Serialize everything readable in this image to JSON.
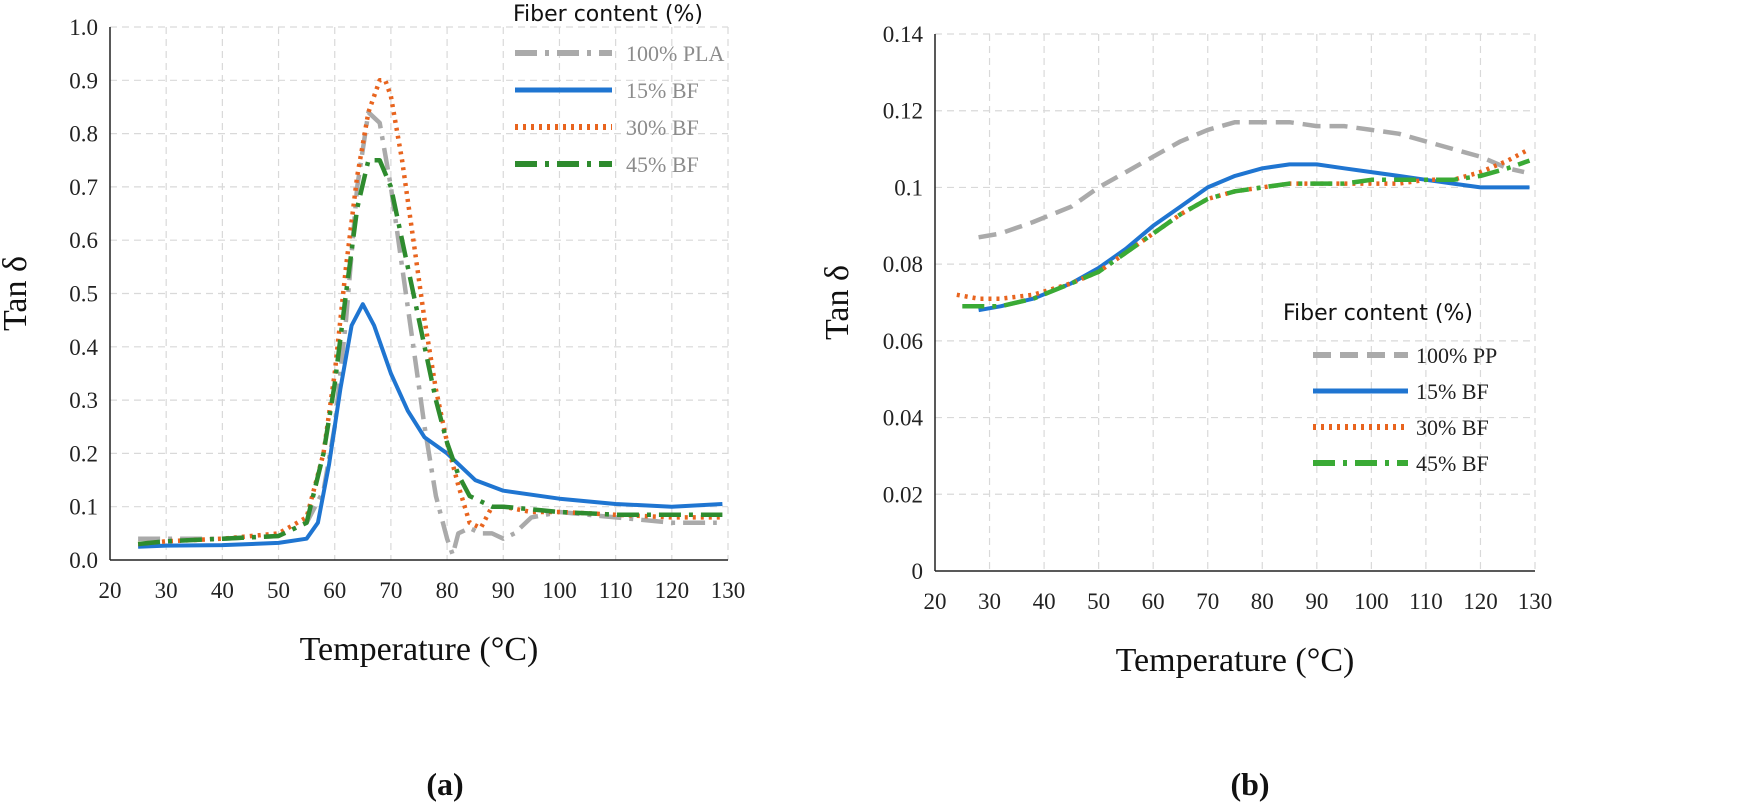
{
  "chart_data": [
    {
      "type": "line",
      "panel_label": "(a)",
      "xlabel": "Temperature (°C)",
      "ylabel": "Tan δ",
      "xlim": [
        20,
        130
      ],
      "ylim": [
        0,
        1.0
      ],
      "xticks": [
        20,
        30,
        40,
        50,
        60,
        70,
        80,
        90,
        100,
        110,
        120,
        130
      ],
      "yticks": [
        "0.0",
        "0.1",
        "0.2",
        "0.3",
        "0.4",
        "0.5",
        "0.6",
        "0.7",
        "0.8",
        "0.9",
        "1.0"
      ],
      "grid": true,
      "legend_title": "Fiber content (%)",
      "legend_position": "top-right",
      "series": [
        {
          "name": "100% PLA",
          "color": "#aaaaaa",
          "style": "dash-dot",
          "label_color": "#8c8c8c",
          "x": [
            25,
            30,
            40,
            50,
            55,
            58,
            60,
            62,
            64,
            66,
            68,
            70,
            72,
            74,
            76,
            78,
            80,
            81,
            82,
            84,
            86,
            88,
            90,
            92,
            95,
            100,
            110,
            120,
            128
          ],
          "y": [
            0.04,
            0.04,
            0.04,
            0.045,
            0.07,
            0.13,
            0.25,
            0.45,
            0.7,
            0.84,
            0.82,
            0.7,
            0.55,
            0.4,
            0.25,
            0.12,
            0.04,
            0.01,
            0.05,
            0.06,
            0.05,
            0.05,
            0.04,
            0.05,
            0.08,
            0.09,
            0.08,
            0.07,
            0.07
          ]
        },
        {
          "name": "15% BF",
          "color": "#1f75d1",
          "style": "solid",
          "label_color": "#8c8c8c",
          "x": [
            25,
            30,
            40,
            50,
            55,
            57,
            59,
            61,
            63,
            65,
            67,
            70,
            73,
            76,
            80,
            85,
            90,
            100,
            110,
            120,
            129
          ],
          "y": [
            0.025,
            0.027,
            0.028,
            0.032,
            0.04,
            0.07,
            0.18,
            0.32,
            0.44,
            0.48,
            0.44,
            0.35,
            0.28,
            0.23,
            0.2,
            0.15,
            0.13,
            0.115,
            0.105,
            0.1,
            0.105
          ]
        },
        {
          "name": "30% BF",
          "color": "#e8641e",
          "style": "dotted",
          "label_color": "#8c8c8c",
          "x": [
            25,
            30,
            40,
            50,
            55,
            58,
            60,
            62,
            64,
            66,
            68,
            69,
            70,
            72,
            74,
            76,
            78,
            80,
            82,
            84,
            86,
            88,
            90,
            95,
            100,
            110,
            120,
            129
          ],
          "y": [
            0.03,
            0.035,
            0.04,
            0.05,
            0.08,
            0.2,
            0.35,
            0.55,
            0.72,
            0.84,
            0.9,
            0.9,
            0.87,
            0.75,
            0.6,
            0.45,
            0.32,
            0.22,
            0.14,
            0.07,
            0.06,
            0.1,
            0.1,
            0.09,
            0.09,
            0.085,
            0.08,
            0.08
          ]
        },
        {
          "name": "45% BF",
          "color": "#2e8b2e",
          "style": "dash-dot",
          "label_color": "#8c8c8c",
          "x": [
            25,
            30,
            40,
            50,
            55,
            58,
            60,
            62,
            64,
            66,
            68,
            70,
            72,
            74,
            76,
            78,
            80,
            82,
            84,
            86,
            88,
            90,
            100,
            110,
            120,
            129
          ],
          "y": [
            0.03,
            0.035,
            0.04,
            0.045,
            0.07,
            0.2,
            0.33,
            0.5,
            0.66,
            0.75,
            0.75,
            0.7,
            0.6,
            0.5,
            0.4,
            0.3,
            0.22,
            0.16,
            0.12,
            0.11,
            0.1,
            0.1,
            0.09,
            0.085,
            0.085,
            0.085
          ]
        }
      ]
    },
    {
      "type": "line",
      "panel_label": "(b)",
      "xlabel": "Temperature (°C)",
      "ylabel": "Tan δ",
      "xlim": [
        20,
        130
      ],
      "ylim": [
        0,
        0.14
      ],
      "xticks": [
        20,
        30,
        40,
        50,
        60,
        70,
        80,
        90,
        100,
        110,
        120,
        130
      ],
      "yticks": [
        "0",
        "0.02",
        "0.04",
        "0.06",
        "0.08",
        "0.1",
        "0.12",
        "0.14"
      ],
      "grid": true,
      "legend_title": "Fiber content (%)",
      "legend_position": "bottom-right",
      "series": [
        {
          "name": "100% PP",
          "color": "#aaaaaa",
          "style": "dashed",
          "label_color": "#222222",
          "x": [
            28,
            32,
            38,
            45,
            50,
            55,
            60,
            65,
            70,
            75,
            80,
            85,
            90,
            95,
            100,
            105,
            110,
            115,
            120,
            125,
            128
          ],
          "y": [
            0.087,
            0.088,
            0.091,
            0.095,
            0.1,
            0.104,
            0.108,
            0.112,
            0.115,
            0.117,
            0.117,
            0.117,
            0.116,
            0.116,
            0.115,
            0.114,
            0.112,
            0.11,
            0.108,
            0.105,
            0.104
          ]
        },
        {
          "name": "15% BF",
          "color": "#1f75d1",
          "style": "solid",
          "label_color": "#222222",
          "x": [
            28,
            32,
            38,
            45,
            50,
            55,
            60,
            65,
            70,
            75,
            80,
            85,
            90,
            95,
            100,
            105,
            110,
            115,
            120,
            125,
            129
          ],
          "y": [
            0.068,
            0.069,
            0.071,
            0.075,
            0.079,
            0.084,
            0.09,
            0.095,
            0.1,
            0.103,
            0.105,
            0.106,
            0.106,
            0.105,
            0.104,
            0.103,
            0.102,
            0.101,
            0.1,
            0.1,
            0.1
          ]
        },
        {
          "name": "30% BF",
          "color": "#e8641e",
          "style": "dotted",
          "label_color": "#222222",
          "x": [
            24,
            28,
            32,
            38,
            45,
            50,
            55,
            60,
            65,
            70,
            75,
            80,
            85,
            90,
            95,
            100,
            105,
            110,
            115,
            120,
            125,
            129
          ],
          "y": [
            0.072,
            0.071,
            0.071,
            0.072,
            0.075,
            0.078,
            0.083,
            0.088,
            0.093,
            0.097,
            0.099,
            0.1,
            0.101,
            0.101,
            0.101,
            0.101,
            0.101,
            0.102,
            0.102,
            0.104,
            0.107,
            0.11
          ]
        },
        {
          "name": "45% BF",
          "color": "#3aaa35",
          "style": "dash-dot",
          "label_color": "#222222",
          "x": [
            25,
            28,
            32,
            38,
            45,
            50,
            55,
            60,
            65,
            70,
            75,
            80,
            85,
            90,
            95,
            100,
            105,
            110,
            115,
            120,
            125,
            129
          ],
          "y": [
            0.069,
            0.069,
            0.069,
            0.071,
            0.075,
            0.078,
            0.083,
            0.088,
            0.093,
            0.097,
            0.099,
            0.1,
            0.101,
            0.101,
            0.101,
            0.102,
            0.102,
            0.102,
            0.102,
            0.103,
            0.105,
            0.107
          ]
        }
      ]
    }
  ]
}
